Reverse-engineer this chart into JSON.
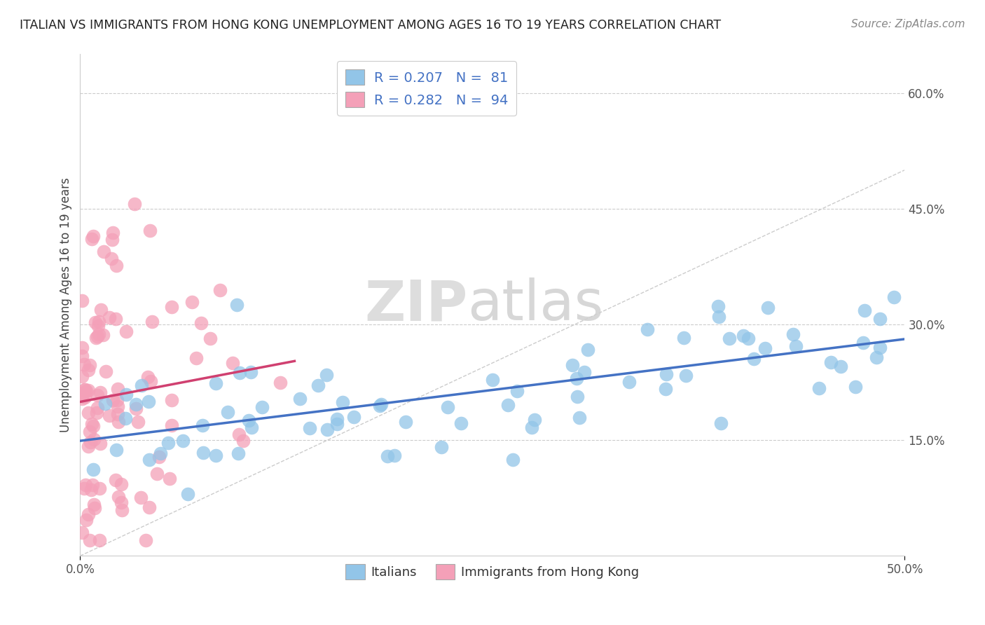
{
  "title": "ITALIAN VS IMMIGRANTS FROM HONG KONG UNEMPLOYMENT AMONG AGES 16 TO 19 YEARS CORRELATION CHART",
  "source": "Source: ZipAtlas.com",
  "ylabel": "Unemployment Among Ages 16 to 19 years",
  "xlim": [
    0,
    0.5
  ],
  "ylim": [
    0.0,
    0.65
  ],
  "xticks": [
    0.0,
    0.5
  ],
  "xticklabels": [
    "0.0%",
    "50.0%"
  ],
  "yticks": [
    0.15,
    0.3,
    0.45,
    0.6
  ],
  "yticklabels": [
    "15.0%",
    "30.0%",
    "45.0%",
    "60.0%"
  ],
  "blue_color": "#92C5E8",
  "pink_color": "#F4A0B8",
  "blue_line_color": "#4472C4",
  "pink_line_color": "#D04070",
  "watermark_zip": "ZIP",
  "watermark_atlas": "atlas",
  "seed": 42,
  "italian_R": 0.207,
  "italian_N": 81,
  "hk_R": 0.282,
  "hk_N": 94
}
